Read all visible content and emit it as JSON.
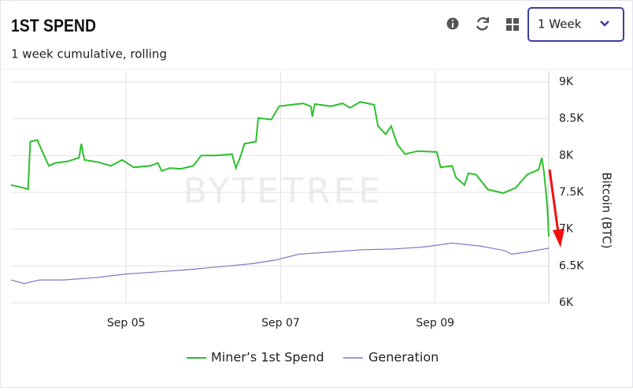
{
  "header": {
    "title": "1ST SPEND",
    "subtitle": "1 week cumulative, rolling",
    "range_select": "1 Week"
  },
  "chart_data": {
    "type": "line",
    "watermark": "BYTETREE",
    "y_label": "Bitcoin (BTC)",
    "xlim": [
      3.51,
      10.47
    ],
    "xticks": [
      {
        "value": 5,
        "label": "Sep 05"
      },
      {
        "value": 7,
        "label": "Sep 07"
      },
      {
        "value": 9,
        "label": "Sep 09"
      }
    ],
    "ylim": [
      6000,
      9000
    ],
    "yticks": [
      {
        "value": 6000,
        "label": "6K"
      },
      {
        "value": 6500,
        "label": "6.5K"
      },
      {
        "value": 7000,
        "label": "7K"
      },
      {
        "value": 7500,
        "label": "7.5K"
      },
      {
        "value": 8000,
        "label": "8K"
      },
      {
        "value": 8500,
        "label": "8.5K"
      },
      {
        "value": 9000,
        "label": "9K"
      }
    ],
    "grid": true,
    "series": [
      {
        "name": "Miner’s 1st Spend",
        "color": "#2dbf2d",
        "x": [
          3.51,
          3.68,
          3.73,
          3.76,
          3.85,
          3.93,
          4.0,
          4.08,
          4.24,
          4.39,
          4.42,
          4.46,
          4.64,
          4.8,
          4.95,
          5.1,
          5.31,
          5.41,
          5.46,
          5.56,
          5.71,
          5.87,
          5.97,
          6.17,
          6.37,
          6.42,
          6.48,
          6.53,
          6.68,
          6.71,
          6.88,
          6.98,
          7.14,
          7.29,
          7.39,
          7.41,
          7.44,
          7.65,
          7.8,
          7.9,
          8.03,
          8.21,
          8.26,
          8.36,
          8.43,
          8.51,
          8.61,
          8.77,
          9.02,
          9.07,
          9.22,
          9.27,
          9.38,
          9.43,
          9.53,
          9.68,
          9.88,
          10.04,
          10.19,
          10.34,
          10.38,
          10.41,
          10.45,
          10.47
        ],
        "values": [
          7600,
          7560,
          7540,
          8190,
          8210,
          8020,
          7860,
          7900,
          7920,
          7970,
          8160,
          7940,
          7910,
          7860,
          7940,
          7840,
          7860,
          7900,
          7790,
          7830,
          7820,
          7860,
          8000,
          8000,
          8020,
          7830,
          7990,
          8160,
          8190,
          8510,
          8490,
          8670,
          8690,
          8710,
          8670,
          8530,
          8700,
          8670,
          8710,
          8650,
          8730,
          8690,
          8400,
          8290,
          8400,
          8150,
          8020,
          8060,
          8050,
          7840,
          7860,
          7700,
          7600,
          7760,
          7740,
          7540,
          7490,
          7560,
          7740,
          7810,
          7970,
          7760,
          7330,
          6900
        ]
      },
      {
        "name": "Generation",
        "color": "#7b7bc4",
        "x": [
          3.51,
          3.68,
          3.88,
          4.19,
          4.59,
          5.0,
          5.41,
          5.81,
          6.22,
          6.63,
          6.93,
          7.24,
          7.65,
          8.05,
          8.46,
          8.87,
          9.22,
          9.58,
          9.89,
          9.99,
          10.19,
          10.47
        ],
        "values": [
          6310,
          6260,
          6310,
          6310,
          6340,
          6390,
          6420,
          6450,
          6490,
          6530,
          6580,
          6660,
          6690,
          6720,
          6730,
          6760,
          6810,
          6770,
          6710,
          6660,
          6690,
          6740
        ]
      }
    ]
  }
}
